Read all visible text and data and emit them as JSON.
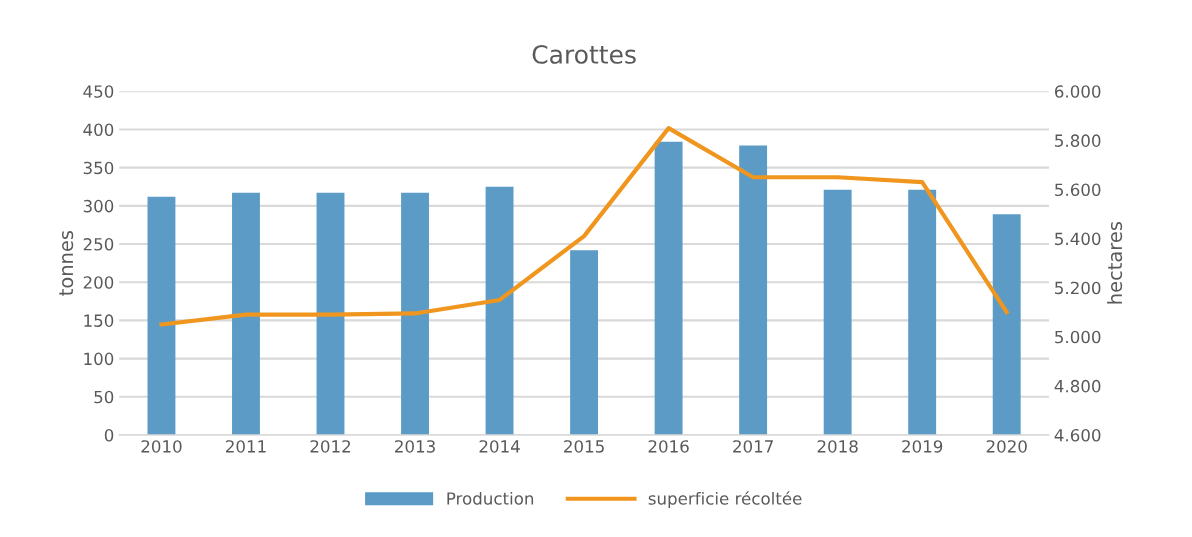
{
  "chart_data": {
    "type": "bar",
    "title": "Carottes",
    "ylabel": "tonnes",
    "y2label": "hectares",
    "categories": [
      "2010",
      "2011",
      "2012",
      "2013",
      "2014",
      "2015",
      "2016",
      "2017",
      "2018",
      "2019",
      "2020"
    ],
    "series": [
      {
        "name": "Production",
        "color": "#5b9bc6",
        "values": [
          312,
          317,
          317,
          317,
          325,
          242,
          384,
          379,
          321,
          321,
          289
        ]
      },
      {
        "name": "superficie récoltée",
        "type": "line",
        "axis": "y2",
        "color": "#f0961e",
        "values": [
          5050,
          5090,
          5090,
          5095,
          5150,
          5410,
          5850,
          5650,
          5650,
          5630,
          5100
        ]
      }
    ],
    "ylim": [
      0,
      450
    ],
    "yticks": [
      0,
      50,
      100,
      150,
      200,
      250,
      300,
      350,
      400,
      450
    ],
    "y2lim": [
      4600,
      6000
    ],
    "y2ticks": [
      {
        "value": 4600,
        "label": "4.600"
      },
      {
        "value": 4800,
        "label": "4.800"
      },
      {
        "value": 5000,
        "label": "5.000"
      },
      {
        "value": 5200,
        "label": "5.200"
      },
      {
        "value": 5400,
        "label": "5.400"
      },
      {
        "value": 5600,
        "label": "5.600"
      },
      {
        "value": 5800,
        "label": "5.800"
      },
      {
        "value": 6000,
        "label": "6.000"
      }
    ],
    "grid": "y",
    "legend": "bottom",
    "marker": "none",
    "line_style": "solid"
  }
}
